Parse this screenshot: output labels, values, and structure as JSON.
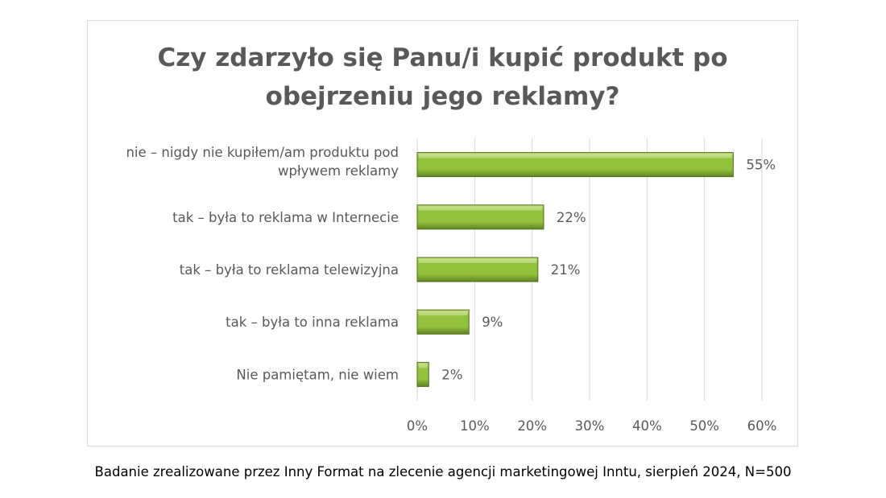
{
  "chart_data": {
    "type": "bar",
    "orientation": "horizontal",
    "title_lines": [
      "Czy zdarzyło się Panu/i kupić produkt po",
      "obejrzeniu jego reklamy?"
    ],
    "title": "Czy zdarzyło się Panu/i kupić produkt po obejrzeniu jego reklamy?",
    "categories": [
      [
        "nie – nigdy nie kupiłem/am produktu pod",
        "wpływem reklamy"
      ],
      [
        "tak – była to reklama w Internecie"
      ],
      [
        "tak – była to reklama telewizyjna"
      ],
      [
        "tak – była to inna reklama"
      ],
      [
        "Nie pamiętam, nie wiem"
      ]
    ],
    "values": [
      55,
      22,
      21,
      9,
      2
    ],
    "value_labels": [
      "55%",
      "22%",
      "21%",
      "9%",
      "2%"
    ],
    "xlim": [
      0,
      60
    ],
    "x_ticks": [
      0,
      10,
      20,
      30,
      40,
      50,
      60
    ],
    "x_tick_labels": [
      "0%",
      "10%",
      "20%",
      "30%",
      "40%",
      "50%",
      "60%"
    ],
    "grid": "vertical",
    "legend": "none",
    "colors": {
      "bar_light": "#c4e07a",
      "bar_main": "#92c13c",
      "bar_dark": "#5f8522",
      "bar_edge": "#4e6b1b",
      "grid": "#d9d9d9",
      "text": "#595959"
    }
  },
  "footnote": "Badanie zrealizowane przez Inny Format na zlecenie agencji marketingowej Inntu, sierpień 2024, N=500"
}
